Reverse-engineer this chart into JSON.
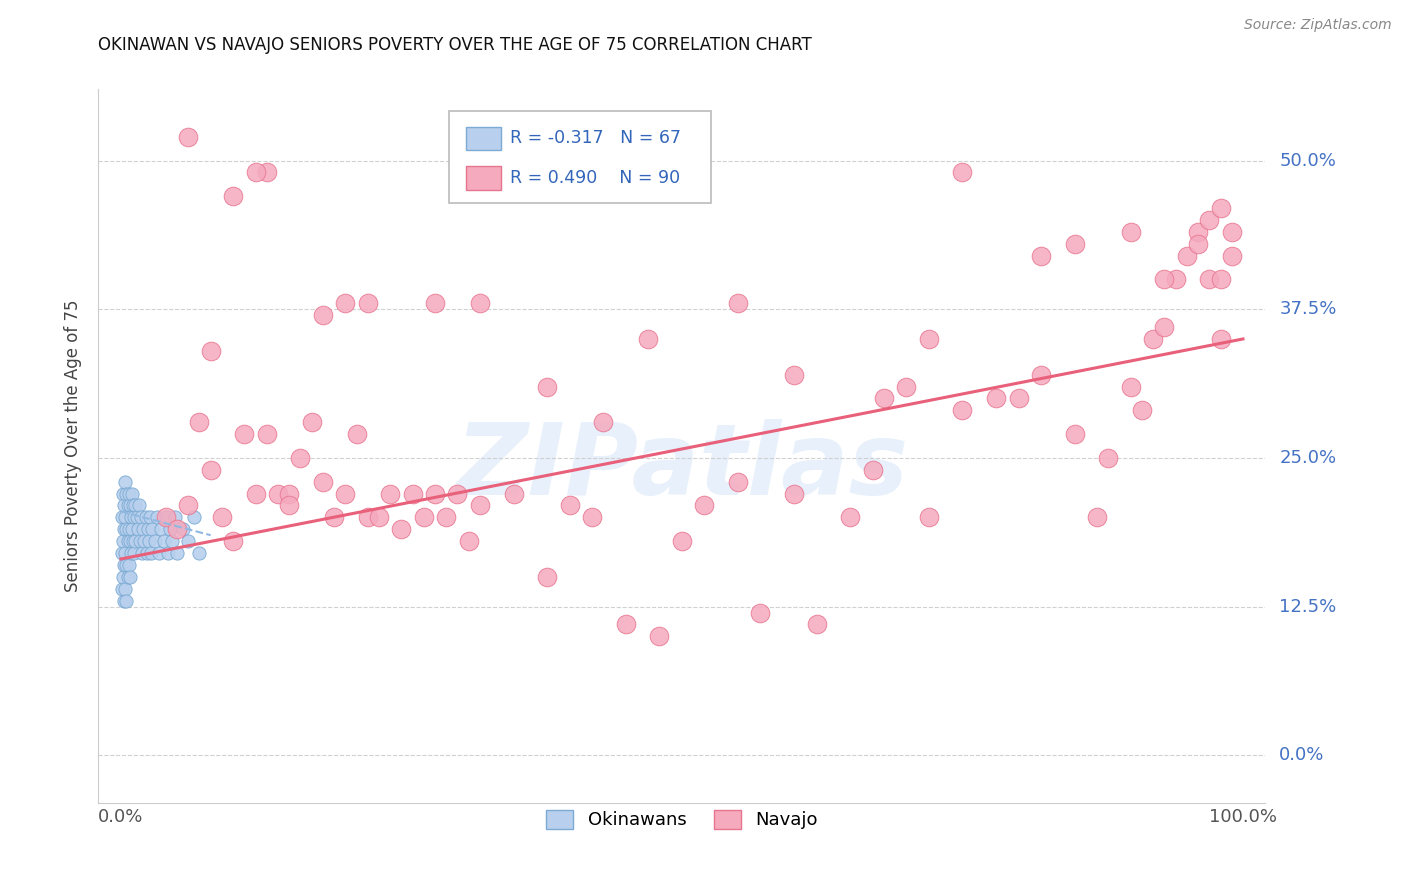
{
  "title": "OKINAWAN VS NAVAJO SENIORS POVERTY OVER THE AGE OF 75 CORRELATION CHART",
  "source": "Source: ZipAtlas.com",
  "ylabel": "Seniors Poverty Over the Age of 75",
  "xlim": [
    -0.02,
    1.02
  ],
  "ylim": [
    -0.04,
    0.56
  ],
  "yticks": [
    0.0,
    0.125,
    0.25,
    0.375,
    0.5
  ],
  "ytick_labels": [
    "0.0%",
    "12.5%",
    "25.0%",
    "37.5%",
    "50.0%"
  ],
  "xticks": [
    0.0,
    1.0
  ],
  "xtick_labels": [
    "0.0%",
    "100.0%"
  ],
  "background_color": "#ffffff",
  "watermark": "ZIPatlas",
  "okinawan_color": "#b8d0ed",
  "navajo_color": "#f5aabe",
  "okinawan_edge": "#7baad4",
  "navajo_edge": "#e8758f",
  "trend_navajo_color": "#e8607a",
  "trend_okinawan_color": "#90b8e0",
  "legend_R_okinawan": "R = -0.317",
  "legend_N_okinawan": "N = 67",
  "legend_R_navajo": "R = 0.490",
  "legend_N_navajo": "N = 90",
  "okinawan_x": [
    0.001,
    0.001,
    0.001,
    0.002,
    0.002,
    0.002,
    0.003,
    0.003,
    0.003,
    0.003,
    0.004,
    0.004,
    0.004,
    0.004,
    0.005,
    0.005,
    0.005,
    0.005,
    0.006,
    0.006,
    0.006,
    0.007,
    0.007,
    0.007,
    0.008,
    0.008,
    0.008,
    0.009,
    0.009,
    0.01,
    0.01,
    0.011,
    0.011,
    0.012,
    0.012,
    0.013,
    0.013,
    0.014,
    0.015,
    0.016,
    0.017,
    0.018,
    0.019,
    0.02,
    0.021,
    0.022,
    0.023,
    0.024,
    0.025,
    0.026,
    0.027,
    0.028,
    0.03,
    0.032,
    0.034,
    0.036,
    0.038,
    0.04,
    0.042,
    0.044,
    0.046,
    0.048,
    0.05,
    0.055,
    0.06,
    0.065,
    0.07
  ],
  "okinawan_y": [
    0.2,
    0.17,
    0.14,
    0.22,
    0.18,
    0.15,
    0.21,
    0.19,
    0.16,
    0.13,
    0.23,
    0.2,
    0.17,
    0.14,
    0.22,
    0.19,
    0.16,
    0.13,
    0.21,
    0.18,
    0.15,
    0.22,
    0.19,
    0.16,
    0.21,
    0.18,
    0.15,
    0.2,
    0.17,
    0.22,
    0.19,
    0.21,
    0.18,
    0.2,
    0.17,
    0.21,
    0.18,
    0.2,
    0.19,
    0.21,
    0.18,
    0.2,
    0.17,
    0.19,
    0.18,
    0.2,
    0.17,
    0.19,
    0.18,
    0.2,
    0.17,
    0.19,
    0.18,
    0.2,
    0.17,
    0.19,
    0.18,
    0.2,
    0.17,
    0.19,
    0.18,
    0.2,
    0.17,
    0.19,
    0.18,
    0.2,
    0.17
  ],
  "navajo_x": [
    0.04,
    0.05,
    0.06,
    0.07,
    0.08,
    0.09,
    0.1,
    0.11,
    0.12,
    0.13,
    0.14,
    0.15,
    0.16,
    0.17,
    0.18,
    0.19,
    0.2,
    0.21,
    0.22,
    0.23,
    0.24,
    0.25,
    0.26,
    0.27,
    0.28,
    0.29,
    0.3,
    0.31,
    0.32,
    0.35,
    0.38,
    0.4,
    0.42,
    0.45,
    0.48,
    0.5,
    0.52,
    0.55,
    0.57,
    0.6,
    0.62,
    0.65,
    0.67,
    0.7,
    0.72,
    0.75,
    0.78,
    0.8,
    0.82,
    0.85,
    0.87,
    0.88,
    0.9,
    0.91,
    0.92,
    0.93,
    0.94,
    0.95,
    0.96,
    0.97,
    0.97,
    0.98,
    0.98,
    0.99,
    0.99,
    0.1,
    0.13,
    0.22,
    0.06,
    0.12,
    0.75,
    0.82,
    0.55,
    0.2,
    0.28,
    0.32,
    0.18,
    0.15,
    0.08,
    0.38,
    0.43,
    0.47,
    0.6,
    0.68,
    0.72,
    0.85,
    0.9,
    0.93,
    0.96,
    0.98
  ],
  "navajo_y": [
    0.2,
    0.19,
    0.21,
    0.28,
    0.24,
    0.2,
    0.18,
    0.27,
    0.22,
    0.27,
    0.22,
    0.22,
    0.25,
    0.28,
    0.23,
    0.2,
    0.22,
    0.27,
    0.2,
    0.2,
    0.22,
    0.19,
    0.22,
    0.2,
    0.22,
    0.2,
    0.22,
    0.18,
    0.21,
    0.22,
    0.15,
    0.21,
    0.2,
    0.11,
    0.1,
    0.18,
    0.21,
    0.23,
    0.12,
    0.22,
    0.11,
    0.2,
    0.24,
    0.31,
    0.2,
    0.29,
    0.3,
    0.3,
    0.32,
    0.27,
    0.2,
    0.25,
    0.31,
    0.29,
    0.35,
    0.36,
    0.4,
    0.42,
    0.44,
    0.45,
    0.4,
    0.4,
    0.35,
    0.42,
    0.44,
    0.47,
    0.49,
    0.38,
    0.52,
    0.49,
    0.49,
    0.42,
    0.38,
    0.38,
    0.38,
    0.38,
    0.37,
    0.21,
    0.34,
    0.31,
    0.28,
    0.35,
    0.32,
    0.3,
    0.35,
    0.43,
    0.44,
    0.4,
    0.43,
    0.46
  ],
  "navajo_trend_x": [
    0.0,
    1.0
  ],
  "navajo_trend_y": [
    0.165,
    0.35
  ],
  "okinawan_trend_x": [
    0.0,
    0.08
  ],
  "okinawan_trend_y": [
    0.205,
    0.185
  ]
}
